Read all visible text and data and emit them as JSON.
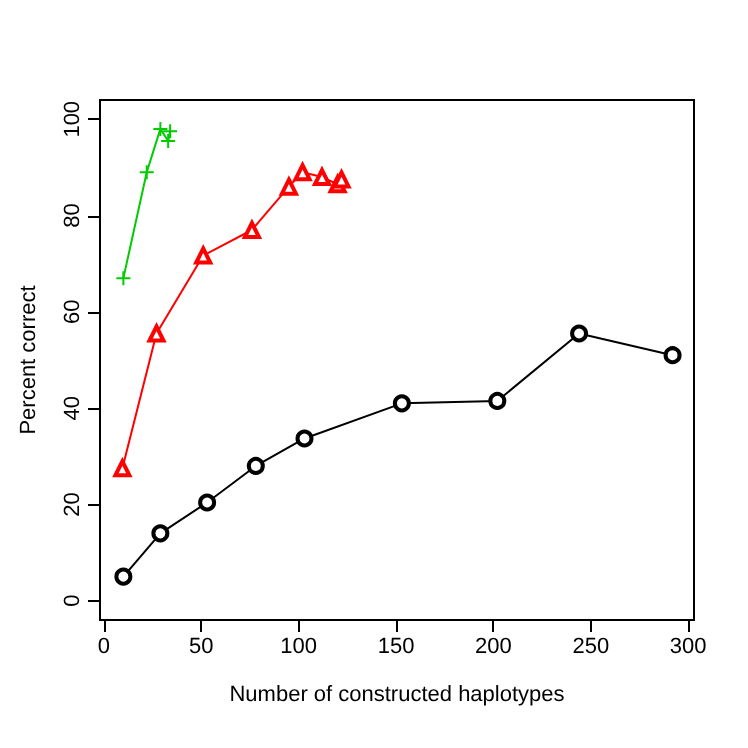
{
  "chart_data": {
    "type": "line",
    "xlabel": "Number of constructed haplotypes",
    "ylabel": "Percent correct",
    "xlim": [
      -2,
      303
    ],
    "xticks": [
      0,
      50,
      100,
      150,
      200,
      250,
      300
    ],
    "ylim": [
      -4,
      104
    ],
    "yticks": [
      0,
      20,
      40,
      60,
      80,
      100
    ],
    "grid": false,
    "line_style": "solid",
    "series": [
      {
        "color": "#000000",
        "marker": "circle",
        "x": [
          10,
          29,
          53,
          78,
          103,
          153,
          202,
          244,
          292
        ],
        "values": [
          5,
          14,
          20.4,
          28,
          33.7,
          41,
          41.5,
          55.5,
          51
        ]
      },
      {
        "color": "#ff0000",
        "marker": "triangle",
        "x": [
          9.5,
          27,
          51,
          76,
          95,
          102,
          112,
          120,
          122
        ],
        "values": [
          27.5,
          55.5,
          71.7,
          77,
          86,
          89,
          88,
          86.5,
          87.5
        ]
      },
      {
        "color": "#00cc00",
        "marker": "cross",
        "x": [
          10,
          22,
          29,
          33,
          34
        ],
        "values": [
          67,
          89,
          98,
          95.5,
          97.5
        ]
      }
    ]
  }
}
